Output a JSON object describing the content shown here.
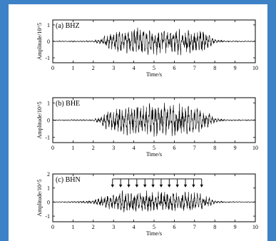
{
  "chart_data": [
    {
      "type": "line",
      "title": "(a) BHZ",
      "xlabel": "Time/s",
      "ylabel": "Amplitude/10^5",
      "xlim": [
        0,
        10
      ],
      "ylim": [
        -1.3,
        1.3
      ],
      "xticks": [
        "0",
        "1",
        "2",
        "3",
        "4",
        "5",
        "6",
        "7",
        "8",
        "9",
        "10"
      ],
      "yticks": [
        "1",
        "0",
        "-1"
      ],
      "series": [
        {
          "envelope": [
            [
              0,
              0.03
            ],
            [
              2,
              0.05
            ],
            [
              2.3,
              0.2
            ],
            [
              2.6,
              0.4
            ],
            [
              3,
              0.65
            ],
            [
              3.5,
              0.85
            ],
            [
              4,
              0.9
            ],
            [
              5,
              0.95
            ],
            [
              6,
              0.9
            ],
            [
              7,
              0.9
            ],
            [
              7.5,
              0.7
            ],
            [
              7.8,
              0.4
            ],
            [
              8,
              0.15
            ],
            [
              8.5,
              0.05
            ],
            [
              10,
              0.03
            ]
          ],
          "cycles": 26,
          "seed": 3
        }
      ]
    },
    {
      "type": "line",
      "title": "(b) BHE",
      "xlabel": "Time/s",
      "ylabel": "Amplitude/10^5",
      "xlim": [
        0,
        10
      ],
      "ylim": [
        -1.3,
        1.3
      ],
      "xticks": [
        "0",
        "1",
        "2",
        "3",
        "4",
        "5",
        "6",
        "7",
        "8",
        "9",
        "10"
      ],
      "yticks": [
        "1",
        "0",
        "-1"
      ],
      "series": [
        {
          "envelope": [
            [
              0,
              0.03
            ],
            [
              2,
              0.05
            ],
            [
              2.3,
              0.25
            ],
            [
              2.6,
              0.6
            ],
            [
              3,
              0.9
            ],
            [
              3.5,
              1.05
            ],
            [
              4,
              1.1
            ],
            [
              5,
              1.1
            ],
            [
              6,
              1.05
            ],
            [
              7,
              1.0
            ],
            [
              7.5,
              0.7
            ],
            [
              7.8,
              0.4
            ],
            [
              8,
              0.15
            ],
            [
              8.5,
              0.05
            ],
            [
              10,
              0.03
            ]
          ],
          "cycles": 26,
          "seed": 7
        }
      ]
    },
    {
      "type": "line",
      "title": "(c) BHN",
      "xlabel": "Time/s",
      "ylabel": "Amplitude/10^5",
      "xlim": [
        0,
        10
      ],
      "ylim": [
        -1.4,
        2.0
      ],
      "xticks": [
        "0",
        "1",
        "2",
        "3",
        "4",
        "5",
        "6",
        "7",
        "8",
        "9",
        "10"
      ],
      "yticks": [
        "2",
        "1",
        "0",
        "-1"
      ],
      "arrows_x": [
        2.95,
        3.35,
        3.75,
        4.15,
        4.55,
        4.95,
        5.35,
        5.75,
        6.15,
        6.55,
        6.95,
        7.35
      ],
      "arrow_line_y": 1.65,
      "series": [
        {
          "envelope": [
            [
              0,
              0.03
            ],
            [
              1.5,
              0.08
            ],
            [
              2,
              0.15
            ],
            [
              2.3,
              0.35
            ],
            [
              2.6,
              0.6
            ],
            [
              3,
              0.8
            ],
            [
              3.5,
              0.9
            ],
            [
              4,
              0.9
            ],
            [
              5,
              0.9
            ],
            [
              6,
              0.85
            ],
            [
              7,
              0.85
            ],
            [
              7.5,
              0.6
            ],
            [
              7.8,
              0.3
            ],
            [
              8,
              0.12
            ],
            [
              8.5,
              0.05
            ],
            [
              10,
              0.03
            ]
          ],
          "cycles": 26,
          "seed": 11
        }
      ]
    }
  ]
}
